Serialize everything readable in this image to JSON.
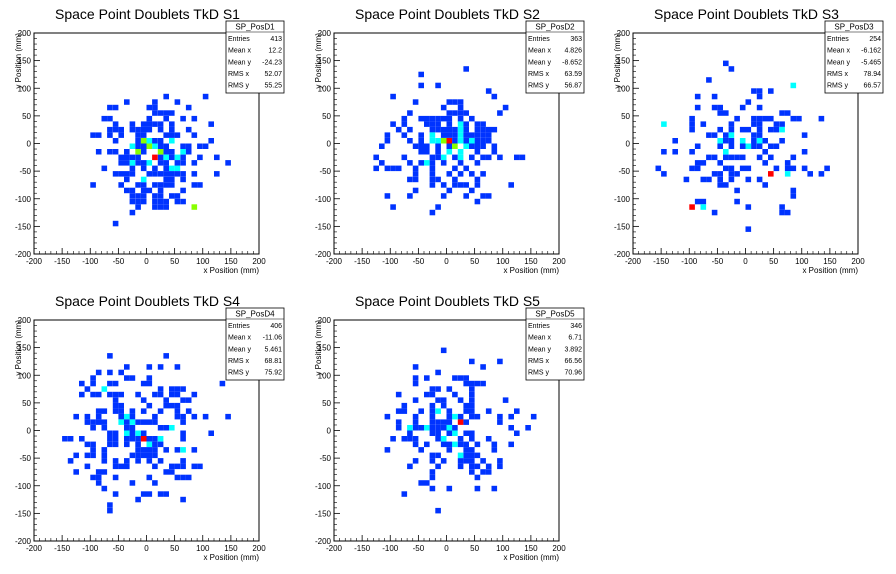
{
  "chart_data": [
    {
      "type": "heatmap",
      "title": "Space Point Doublets TkD S1",
      "xlabel": "x Position (mm)",
      "ylabel": "y Position (mm)",
      "xlim": [
        -200,
        200
      ],
      "ylim": [
        -200,
        200
      ],
      "xticks": [
        "-200",
        "-150",
        "-100",
        "-50",
        "0",
        "50",
        "100",
        "150",
        "200"
      ],
      "yticks": [
        "-200",
        "-150",
        "-100",
        "-50",
        "0",
        "50",
        "100",
        "150",
        "200"
      ],
      "stats": {
        "name": "SP_PosD1",
        "rows": [
          [
            "Entries",
            "413"
          ],
          [
            "Mean x",
            "12.2"
          ],
          [
            "Mean y",
            "-24.23"
          ],
          [
            "RMS x",
            "52.07"
          ],
          [
            "RMS y",
            "55.25"
          ]
        ]
      },
      "summary": {
        "entries": 413,
        "mean_x": 12.2,
        "mean_y": -24.23,
        "rms_x": 52.07,
        "rms_y": 55.25
      },
      "hot": [
        [
          10,
          -25,
          4
        ],
        [
          0,
          -10,
          3
        ],
        [
          -20,
          -20,
          3
        ],
        [
          20,
          -15,
          3
        ],
        [
          30,
          -25,
          2
        ],
        [
          -10,
          0,
          3
        ],
        [
          40,
          0,
          2
        ],
        [
          80,
          -120,
          3
        ],
        [
          -30,
          -35,
          2
        ],
        [
          60,
          -20,
          2
        ],
        [
          5,
          -40,
          2
        ],
        [
          -25,
          -10,
          2
        ],
        [
          50,
          -45,
          2
        ],
        [
          -100,
          -75,
          1
        ]
      ]
    },
    {
      "type": "heatmap",
      "title": "Space Point Doublets TkD S2",
      "xlabel": "x Position (mm)",
      "ylabel": "y Position (mm)",
      "xlim": [
        -200,
        200
      ],
      "ylim": [
        -200,
        200
      ],
      "xticks": [
        "-200",
        "-150",
        "-100",
        "-50",
        "0",
        "50",
        "100",
        "150",
        "200"
      ],
      "yticks": [
        "-200",
        "-150",
        "-100",
        "-50",
        "0",
        "50",
        "100",
        "150",
        "200"
      ],
      "stats": {
        "name": "SP_PosD2",
        "rows": [
          [
            "Entries",
            "363"
          ],
          [
            "Mean x",
            "4.826"
          ],
          [
            "Mean y",
            "-8.652"
          ],
          [
            "RMS x",
            "63.59"
          ],
          [
            "RMS y",
            "56.87"
          ]
        ]
      },
      "summary": {
        "entries": 363,
        "mean_x": 4.826,
        "mean_y": -8.652,
        "rms_x": 63.59,
        "rms_y": 56.87
      },
      "hot": [
        [
          5,
          0,
          4
        ],
        [
          -5,
          5,
          3
        ],
        [
          10,
          -5,
          3
        ],
        [
          20,
          5,
          2
        ],
        [
          -20,
          0,
          2
        ],
        [
          30,
          -10,
          2
        ],
        [
          0,
          -15,
          2
        ],
        [
          -30,
          15,
          2
        ],
        [
          40,
          5,
          1
        ],
        [
          -10,
          20,
          1
        ],
        [
          -110,
          -95,
          1
        ],
        [
          80,
          25,
          1
        ]
      ]
    },
    {
      "type": "heatmap",
      "title": "Space Point Doublets TkD S3",
      "xlabel": "x Position (mm)",
      "ylabel": "y Position (mm)",
      "xlim": [
        -200,
        200
      ],
      "ylim": [
        -200,
        200
      ],
      "xticks": [
        "-200",
        "-150",
        "-100",
        "-50",
        "0",
        "50",
        "100",
        "150",
        "200"
      ],
      "yticks": [
        "-200",
        "-150",
        "-100",
        "-50",
        "0",
        "50",
        "100",
        "150",
        "200"
      ],
      "stats": {
        "name": "SP_PosD3",
        "rows": [
          [
            "Entries",
            "254"
          ],
          [
            "Mean x",
            "-6.162"
          ],
          [
            "Mean y",
            "-5.465"
          ],
          [
            "RMS x",
            "78.94"
          ],
          [
            "RMS y",
            "66.57"
          ]
        ]
      },
      "summary": {
        "entries": 254,
        "mean_x": -6.162,
        "mean_y": -5.465,
        "rms_x": 78.94,
        "rms_y": 66.57
      },
      "hot": [
        [
          40,
          -60,
          4
        ],
        [
          -95,
          -120,
          4
        ],
        [
          -10,
          0,
          2
        ],
        [
          0,
          -5,
          2
        ],
        [
          -30,
          10,
          2
        ],
        [
          20,
          5,
          2
        ],
        [
          -40,
          -20,
          2
        ],
        [
          60,
          20,
          2
        ],
        [
          -80,
          -120,
          2
        ],
        [
          80,
          100,
          2
        ],
        [
          -150,
          30,
          2
        ],
        [
          70,
          -60,
          2
        ],
        [
          -50,
          0,
          2
        ],
        [
          100,
          -20,
          1
        ]
      ]
    },
    {
      "type": "heatmap",
      "title": "Space Point Doublets TkD S4",
      "xlabel": "x Position (mm)",
      "ylabel": "y Position (mm)",
      "xlim": [
        -200,
        200
      ],
      "ylim": [
        -200,
        200
      ],
      "xticks": [
        "-200",
        "-150",
        "-100",
        "-50",
        "0",
        "50",
        "100",
        "150",
        "200"
      ],
      "yticks": [
        "-200",
        "-150",
        "-100",
        "-50",
        "0",
        "50",
        "100",
        "150",
        "200"
      ],
      "stats": {
        "name": "SP_PosD4",
        "rows": [
          [
            "Entries",
            "406"
          ],
          [
            "Mean x",
            "-11.06"
          ],
          [
            "Mean y",
            "5.461"
          ],
          [
            "RMS x",
            "68.81"
          ],
          [
            "RMS y",
            "75.92"
          ]
        ]
      },
      "summary": {
        "entries": 406,
        "mean_x": -11.06,
        "mean_y": 5.461,
        "rms_x": 68.81,
        "rms_y": 75.92
      },
      "hot": [
        [
          -5,
          -15,
          4
        ],
        [
          25,
          -20,
          2
        ],
        [
          -20,
          -10,
          2
        ],
        [
          0,
          -30,
          2
        ],
        [
          40,
          0,
          2
        ],
        [
          -40,
          20,
          2
        ],
        [
          -80,
          70,
          2
        ],
        [
          60,
          -40,
          2
        ],
        [
          -60,
          -30,
          1
        ],
        [
          20,
          30,
          1
        ]
      ]
    },
    {
      "type": "heatmap",
      "title": "Space Point Doublets TkD S5",
      "xlabel": "x Position (mm)",
      "ylabel": "y Position (mm)",
      "xlim": [
        -200,
        200
      ],
      "ylim": [
        -200,
        200
      ],
      "xticks": [
        "-200",
        "-150",
        "-100",
        "-50",
        "0",
        "50",
        "100",
        "150",
        "200"
      ],
      "yticks": [
        "-200",
        "-150",
        "-100",
        "-50",
        "0",
        "50",
        "100",
        "150",
        "200"
      ],
      "stats": {
        "name": "SP_PosD5",
        "rows": [
          [
            "Entries",
            "346"
          ],
          [
            "Mean x",
            "6.71"
          ],
          [
            "Mean y",
            "3.892"
          ],
          [
            "RMS x",
            "66.56"
          ],
          [
            "RMS y",
            "70.96"
          ]
        ]
      },
      "summary": {
        "entries": 346,
        "mean_x": 6.71,
        "mean_y": 3.892,
        "rms_x": 66.56,
        "rms_y": 70.96
      },
      "hot": [
        [
          20,
          10,
          4
        ],
        [
          10,
          20,
          2
        ],
        [
          -70,
          5,
          2
        ],
        [
          15,
          -10,
          2
        ],
        [
          25,
          -50,
          2
        ],
        [
          -10,
          -20,
          2
        ],
        [
          30,
          30,
          1
        ],
        [
          0,
          0,
          2
        ],
        [
          -20,
          15,
          1
        ],
        [
          40,
          -10,
          1
        ]
      ]
    }
  ],
  "palette": [
    "#0033ff",
    "#00ffff",
    "#88ff00",
    "#ff0000"
  ]
}
